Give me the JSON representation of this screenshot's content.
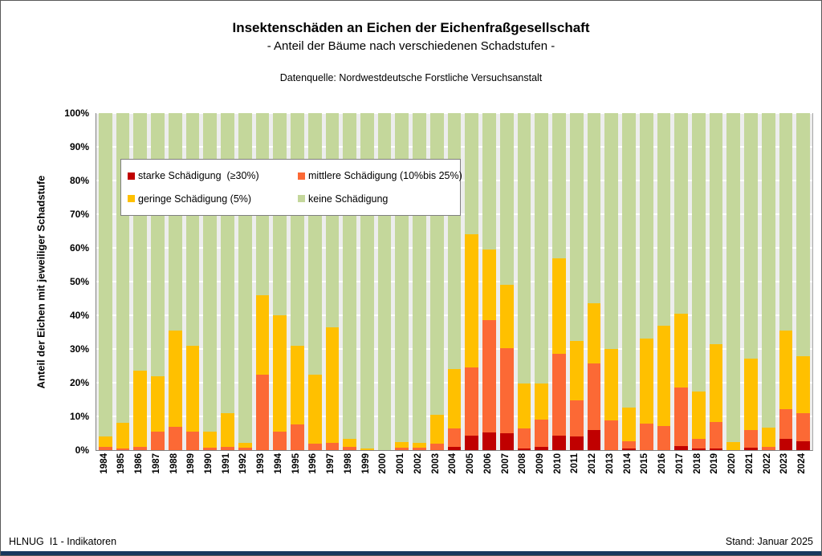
{
  "header": {
    "title": "Insektenschäden an Eichen der Eichenfraßgesellschaft",
    "subtitle": "- Anteil der Bäume nach verschiedenen  Schadstufen -",
    "source": "Datenquelle: Nordwestdeutsche Forstliche Versuchsanstalt"
  },
  "footer": {
    "left": "HLNUG  I1 - Indikatoren",
    "right": "Stand: Januar 2025"
  },
  "colors": {
    "plot_background": "#EDEDED",
    "gridline": "#FFFFFF",
    "axis": "#808080",
    "bottom_strip": "#17375D"
  },
  "chart_data": {
    "type": "bar",
    "stacked": true,
    "title": "Insektenschäden an Eichen der Eichenfraßgesellschaft",
    "subtitle": "- Anteil der Bäume nach verschiedenen Schadstufen -",
    "xlabel": "",
    "ylabel": "Anteil der Eichen mit jeweiliger Schadstufe",
    "ylim": [
      0,
      100
    ],
    "yticks": [
      "0%",
      "10%",
      "20%",
      "30%",
      "40%",
      "50%",
      "60%",
      "70%",
      "80%",
      "90%",
      "100%"
    ],
    "grid": true,
    "legend_position": "inside-upper-left",
    "categories": [
      "1984",
      "1985",
      "1986",
      "1987",
      "1988",
      "1989",
      "1990",
      "1991",
      "1992",
      "1993",
      "1994",
      "1995",
      "1996",
      "1997",
      "1998",
      "1999",
      "2000",
      "2001",
      "2002",
      "2003",
      "2004",
      "2005",
      "2006",
      "2007",
      "2008",
      "2009",
      "2010",
      "2011",
      "2012",
      "2013",
      "2014",
      "2015",
      "2016",
      "2017",
      "2018",
      "2019",
      "2020",
      "2021",
      "2022",
      "2023",
      "2024"
    ],
    "series": [
      {
        "name": "starke Schädigung  (≥30%)",
        "color": "#C00000",
        "values": [
          0,
          0,
          0,
          0,
          0,
          0,
          0,
          0,
          0,
          0,
          0,
          0,
          0,
          0,
          0,
          0,
          0,
          0,
          0,
          0,
          1,
          4.2,
          5.3,
          4.9,
          0.5,
          1,
          4.2,
          4.1,
          5.9,
          0,
          0.5,
          0,
          0,
          1.3,
          0.5,
          0.5,
          0,
          0.7,
          0,
          3.4,
          2.7
        ]
      },
      {
        "name": "mittlere Schädigung (10%bis 25%)",
        "color": "#FC6935",
        "values": [
          1,
          0.5,
          1,
          5.5,
          7,
          5.5,
          0.7,
          1,
          0.7,
          22.5,
          5.5,
          7.7,
          2,
          2.1,
          1,
          0,
          0,
          0.6,
          0.7,
          2,
          5.5,
          20.3,
          33.2,
          25.3,
          6,
          8,
          24.4,
          10.7,
          19.8,
          8.7,
          2.2,
          7.9,
          7.1,
          17.2,
          2.9,
          7.8,
          0,
          5.2,
          1,
          8.8,
          8.2
        ]
      },
      {
        "name": "geringe Schädigung (5%)",
        "color": "#FFC000",
        "values": [
          3,
          7.5,
          22.5,
          16.5,
          28.5,
          25.5,
          4.8,
          10,
          1.5,
          23.5,
          34.5,
          23.3,
          20.5,
          34.4,
          2.4,
          0.5,
          0,
          1.9,
          1.4,
          8.5,
          17.5,
          39.5,
          21,
          18.8,
          13.3,
          10.8,
          28.4,
          17.6,
          17.8,
          21.2,
          10,
          25.1,
          29.9,
          22,
          14.1,
          23.1,
          2.3,
          21.2,
          5.7,
          23.3,
          16.9
        ]
      },
      {
        "name": "keine Schädigung",
        "color": "#C4D79B",
        "values": [
          96,
          92,
          76.5,
          78,
          64.5,
          69,
          94.5,
          89,
          97.8,
          54,
          60,
          69,
          77.5,
          63.5,
          96.6,
          99.5,
          100,
          97.5,
          97.9,
          89.5,
          76,
          36,
          40.5,
          51,
          80.2,
          80.2,
          43,
          67.6,
          56.5,
          70.1,
          87.3,
          67,
          63,
          59.5,
          82.5,
          68.6,
          97.7,
          72.9,
          93.3,
          64.5,
          72.2
        ]
      }
    ]
  }
}
